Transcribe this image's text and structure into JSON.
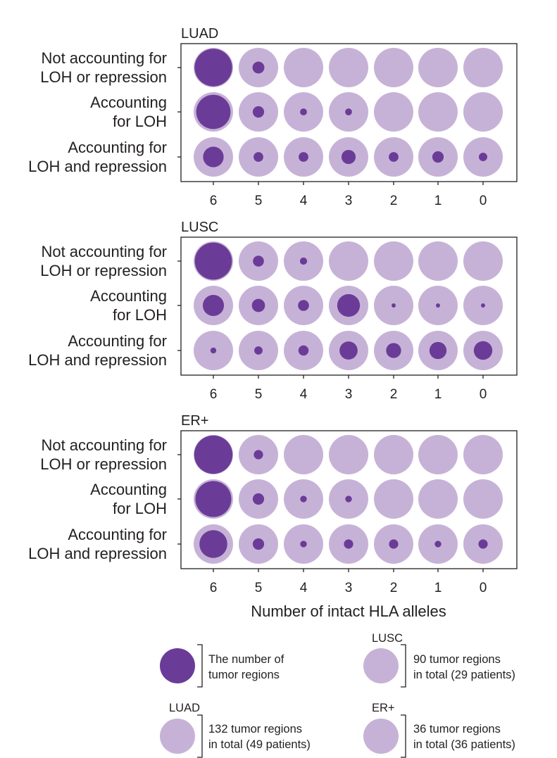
{
  "chart_data": [
    {
      "type": "bubble-grid",
      "title": "LUAD",
      "row_labels": [
        [
          "Not accounting for",
          "LOH or repression"
        ],
        [
          "Accounting",
          "for LOH"
        ],
        [
          "Accounting for",
          "LOH and repression"
        ]
      ],
      "categories": [
        "6",
        "5",
        "4",
        "3",
        "2",
        "1",
        "0"
      ],
      "total_regions": 132,
      "values": [
        [
          120,
          12,
          0,
          0,
          0,
          0,
          0
        ],
        [
          100,
          11,
          4,
          4,
          0,
          0,
          0
        ],
        [
          36,
          8,
          8,
          17,
          8,
          11,
          6
        ]
      ]
    },
    {
      "type": "bubble-grid",
      "title": "LUSC",
      "row_labels": [
        [
          "Not accounting for",
          "LOH or repression"
        ],
        [
          "Accounting",
          "for LOH"
        ],
        [
          "Accounting for",
          "LOH and repression"
        ]
      ],
      "categories": [
        "6",
        "5",
        "4",
        "3",
        "2",
        "1",
        "0"
      ],
      "total_regions": 90,
      "values": [
        [
          80,
          7,
          3,
          0,
          0,
          0,
          0
        ],
        [
          26,
          10,
          7,
          30,
          1,
          1,
          1
        ],
        [
          2,
          4,
          6,
          19,
          13,
          17,
          20
        ]
      ]
    },
    {
      "type": "bubble-grid",
      "title": "ER+",
      "row_labels": [
        [
          "Not accounting for",
          "LOH or repression"
        ],
        [
          "Accounting",
          "for LOH"
        ],
        [
          "Accounting for",
          "LOH and repression"
        ]
      ],
      "categories": [
        "6",
        "5",
        "4",
        "3",
        "2",
        "1",
        "0"
      ],
      "total_regions": 36,
      "values": [
        [
          34,
          2,
          0,
          0,
          0,
          0,
          0
        ],
        [
          30,
          3,
          1,
          1,
          0,
          0,
          0
        ],
        [
          18,
          3,
          1,
          2,
          2,
          1,
          2
        ]
      ]
    }
  ],
  "xlabel": "Number of intact HLA alleles",
  "colors": {
    "region_dot": "#6a3c97",
    "total_circle": "#c7b2d7",
    "panel_border": "#231f20",
    "text": "#231f20"
  },
  "legend": {
    "dot_label": [
      "The number of",
      "tumor regions"
    ],
    "items": [
      {
        "cohort": "LUAD",
        "lines": [
          "132 tumor regions",
          "in total (49 patients)"
        ]
      },
      {
        "cohort": "LUSC",
        "lines": [
          "90 tumor regions",
          "in total (29 patients)"
        ]
      },
      {
        "cohort": "ER+",
        "lines": [
          "36 tumor regions",
          "in total (36 patients)"
        ]
      }
    ]
  }
}
